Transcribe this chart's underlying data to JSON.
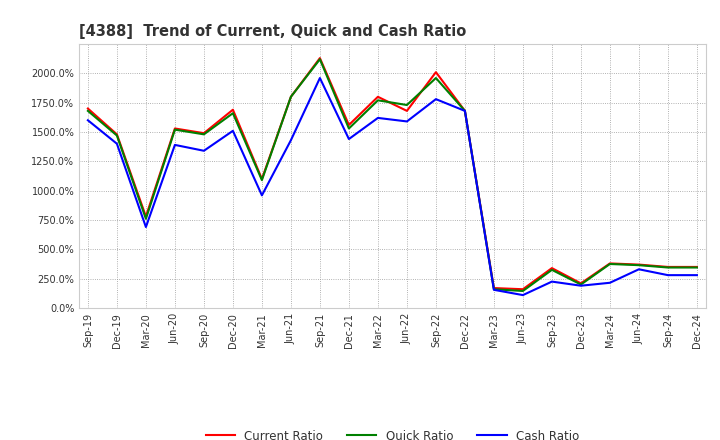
{
  "title": "[4388]  Trend of Current, Quick and Cash Ratio",
  "labels": [
    "Sep-19",
    "Dec-19",
    "Mar-20",
    "Jun-20",
    "Sep-20",
    "Dec-20",
    "Mar-21",
    "Jun-21",
    "Sep-21",
    "Dec-21",
    "Mar-22",
    "Jun-22",
    "Sep-22",
    "Dec-22",
    "Mar-23",
    "Jun-23",
    "Sep-23",
    "Dec-23",
    "Mar-24",
    "Jun-24",
    "Sep-24",
    "Dec-24"
  ],
  "current_ratio": [
    1700,
    1480,
    780,
    1530,
    1490,
    1690,
    1100,
    1800,
    2130,
    1560,
    1800,
    1680,
    2010,
    1680,
    170,
    160,
    340,
    210,
    380,
    370,
    350,
    350
  ],
  "quick_ratio": [
    1680,
    1470,
    760,
    1520,
    1480,
    1660,
    1090,
    1800,
    2120,
    1530,
    1770,
    1730,
    1960,
    1680,
    160,
    145,
    325,
    200,
    375,
    365,
    345,
    345
  ],
  "cash_ratio": [
    1600,
    1400,
    690,
    1390,
    1340,
    1510,
    960,
    1430,
    1960,
    1440,
    1620,
    1590,
    1780,
    1680,
    155,
    110,
    225,
    190,
    215,
    330,
    280,
    280
  ],
  "current_color": "#ff0000",
  "quick_color": "#008000",
  "cash_color": "#0000ff",
  "bg_color": "#ffffff",
  "grid_color": "#999999",
  "ylim": [
    0,
    2250
  ],
  "yticks": [
    0,
    250,
    500,
    750,
    1000,
    1250,
    1500,
    1750,
    2000
  ],
  "title_color": "#333333",
  "title_fontsize": 10.5,
  "tick_fontsize": 7,
  "legend_fontsize": 8.5
}
